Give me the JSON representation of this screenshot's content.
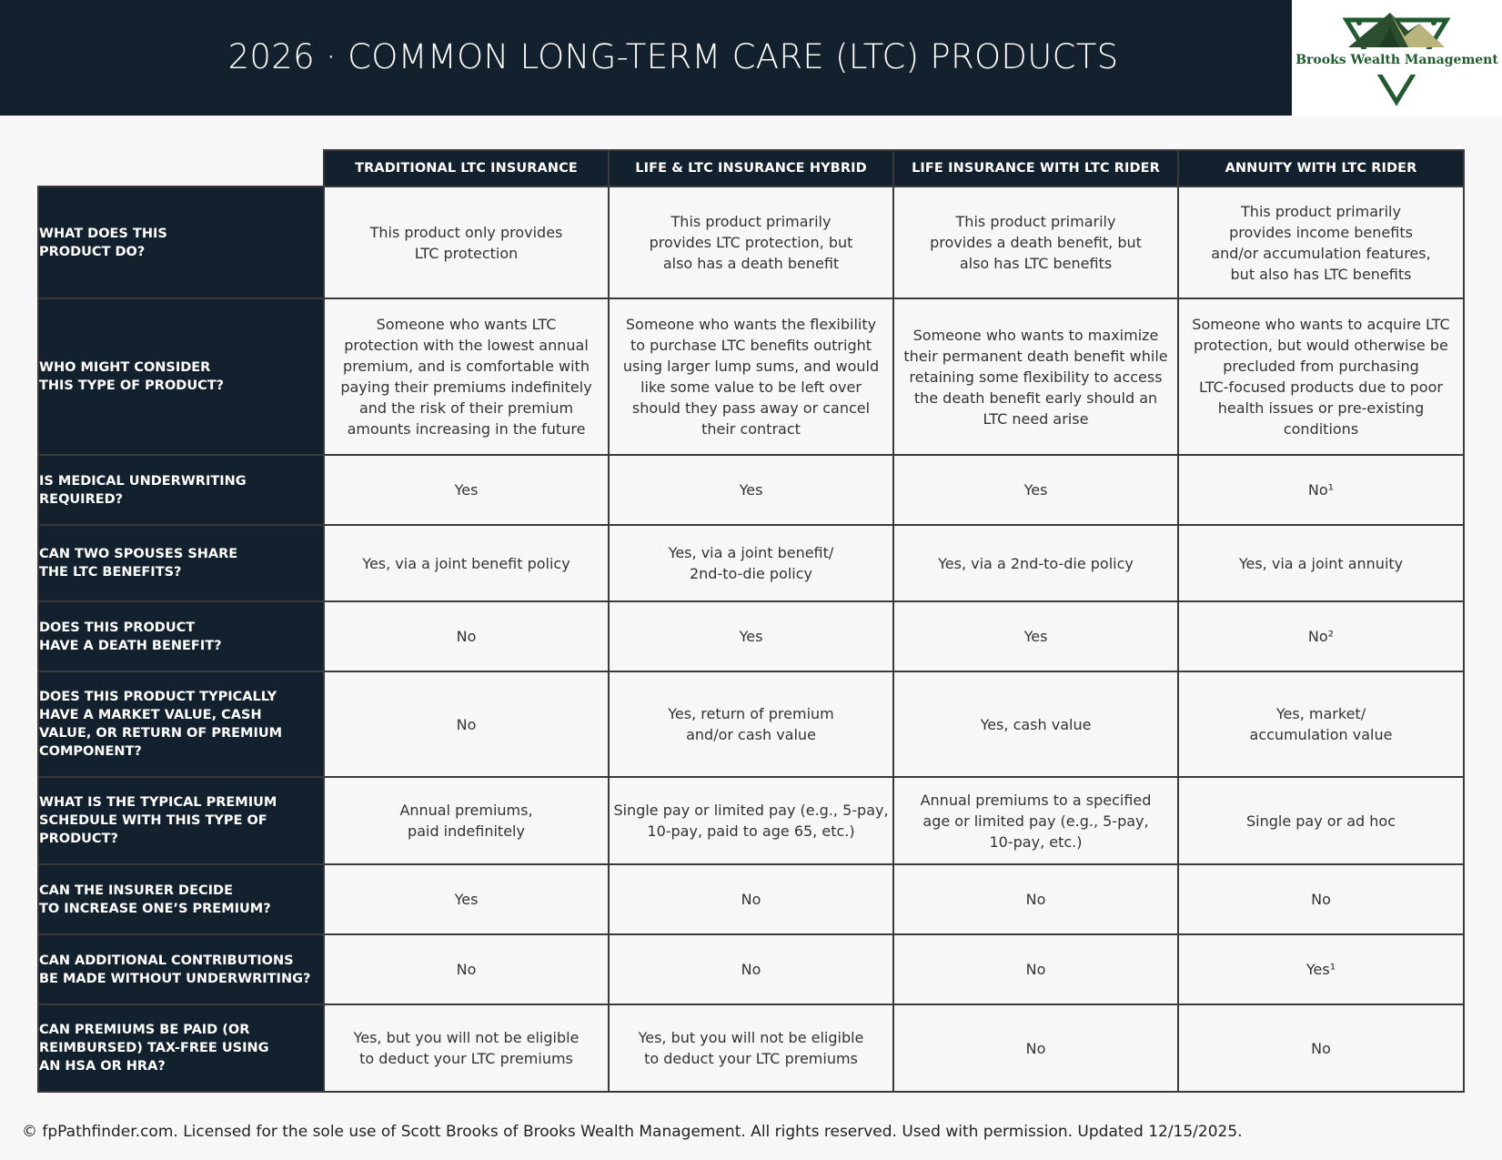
{
  "header": {
    "title": "2026 · COMMON LONG-TERM CARE (LTC) PRODUCTS",
    "logo_text": "Brooks Wealth Management",
    "logo_colors": {
      "triangle": "#1f5b2e",
      "mountain_dark": "#234b2a",
      "mountain_light": "#b8b27a"
    }
  },
  "table": {
    "columns": [
      "TRADITIONAL LTC INSURANCE",
      "LIFE & LTC INSURANCE HYBRID",
      "LIFE INSURANCE WITH LTC RIDER",
      "ANNUITY WITH LTC RIDER"
    ],
    "rows": [
      {
        "question": "WHAT DOES THIS\nPRODUCT DO?",
        "cells": [
          "This product only provides\nLTC protection",
          "This product primarily\nprovides LTC protection, but\nalso has a death benefit",
          "This product primarily\nprovides a death benefit, but\nalso has LTC benefits",
          "This product primarily\nprovides income benefits\nand/or accumulation features,\nbut also has LTC benefits"
        ]
      },
      {
        "question": "WHO MIGHT CONSIDER\nTHIS TYPE OF PRODUCT?",
        "cells": [
          "Someone who wants LTC\nprotection with the lowest annual\npremium, and is comfortable with\npaying their premiums indefinitely\nand the risk of their premium\namounts increasing in the future",
          "Someone who wants the flexibility\nto purchase LTC benefits outright\nusing larger lump sums, and would\nlike some value to be left over\nshould they pass away or cancel\ntheir contract",
          "Someone who wants to maximize\ntheir permanent death benefit while\nretaining some flexibility to access\nthe death benefit early should an\nLTC need arise",
          "Someone who wants to acquire LTC\nprotection, but would otherwise be\nprecluded from purchasing\nLTC-focused products due to poor\nhealth issues or pre-existing\nconditions"
        ]
      },
      {
        "question": "IS MEDICAL UNDERWRITING\nREQUIRED?",
        "cells": [
          "Yes",
          "Yes",
          "Yes",
          "No¹"
        ]
      },
      {
        "question": "CAN TWO SPOUSES SHARE\nTHE LTC BENEFITS?",
        "cells": [
          "Yes, via a joint benefit policy",
          "Yes, via a joint benefit/\n2nd-to-die policy",
          "Yes, via a 2nd-to-die policy",
          "Yes, via a joint annuity"
        ]
      },
      {
        "question": "DOES THIS PRODUCT\nHAVE A DEATH BENEFIT?",
        "cells": [
          "No",
          "Yes",
          "Yes",
          "No²"
        ]
      },
      {
        "question": "DOES THIS PRODUCT TYPICALLY\nHAVE A MARKET VALUE, CASH\nVALUE, OR RETURN OF PREMIUM\nCOMPONENT?",
        "cells": [
          "No",
          "Yes, return of premium\nand/or cash value",
          "Yes, cash value",
          "Yes, market/\naccumulation value"
        ]
      },
      {
        "question": "WHAT IS THE TYPICAL PREMIUM\nSCHEDULE WITH THIS TYPE OF\nPRODUCT?",
        "cells": [
          "Annual premiums,\npaid indefinitely",
          "Single pay or limited pay (e.g., 5-pay,\n10-pay, paid to age 65, etc.)",
          "Annual premiums to a specified\nage or limited pay (e.g., 5-pay,\n10-pay, etc.)",
          "Single pay or ad hoc"
        ]
      },
      {
        "question": "CAN THE INSURER DECIDE\nTO INCREASE ONE’S PREMIUM?",
        "cells": [
          "Yes",
          "No",
          "No",
          "No"
        ]
      },
      {
        "question": "CAN ADDITIONAL CONTRIBUTIONS\nBE MADE WITHOUT UNDERWRITING?",
        "cells": [
          "No",
          "No",
          "No",
          "Yes¹"
        ]
      },
      {
        "question": "CAN PREMIUMS BE PAID (OR\nREIMBURSED) TAX-FREE USING\nAN HSA OR HRA?",
        "cells": [
          "Yes, but you will not be eligible\nto deduct your LTC premiums",
          "Yes, but you will not be eligible\nto deduct your LTC premiums",
          "No",
          "No"
        ]
      }
    ]
  },
  "footer": {
    "text": "© fpPathfinder.com. Licensed for the sole use of Scott Brooks of Brooks Wealth Management. All rights reserved. Used with permission. Updated 12/15/2025."
  }
}
